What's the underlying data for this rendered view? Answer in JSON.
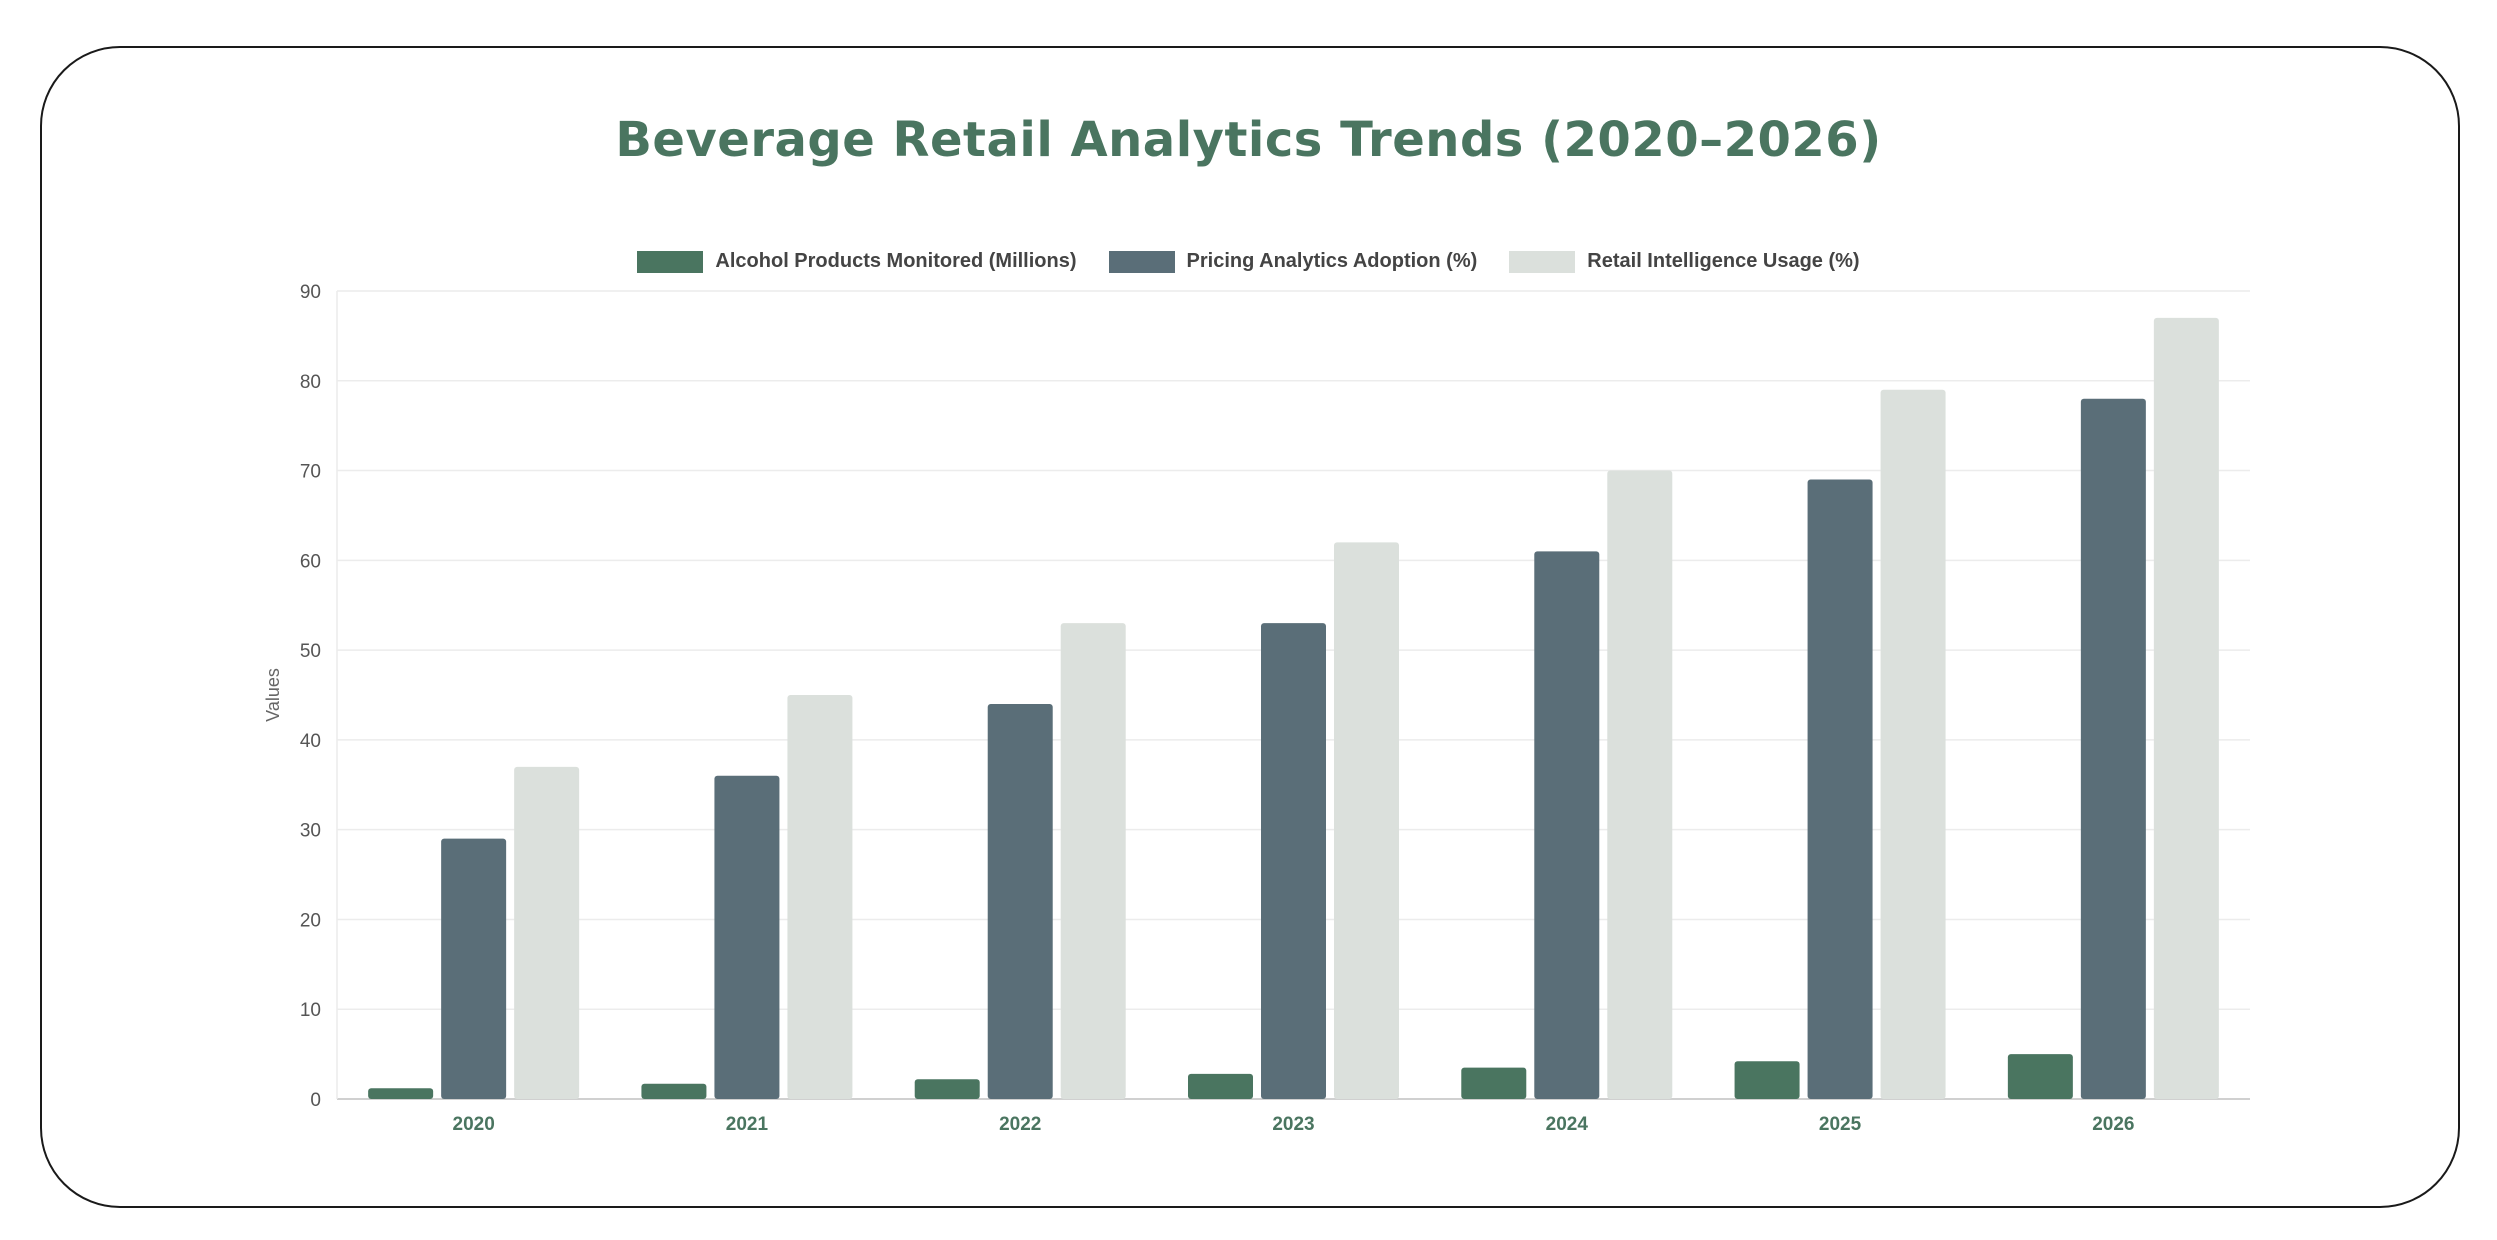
{
  "chart_data": {
    "type": "bar",
    "title": "Beverage Retail Analytics Trends (2020–2026)",
    "xlabel": "",
    "ylabel": "Values",
    "categories": [
      "2020",
      "2021",
      "2022",
      "2023",
      "2024",
      "2025",
      "2026"
    ],
    "series": [
      {
        "name": "Alcohol Products Monitored (Millions)",
        "color": "#4a7560",
        "values": [
          1.2,
          1.7,
          2.2,
          2.8,
          3.5,
          4.2,
          5.0
        ]
      },
      {
        "name": "Pricing Analytics Adoption (%)",
        "color": "#5a6e78",
        "values": [
          29,
          36,
          44,
          53,
          61,
          69,
          78
        ]
      },
      {
        "name": "Retail Intelligence Usage (%)",
        "color": "#dbe0dc",
        "values": [
          37,
          45,
          53,
          62,
          70,
          79,
          87
        ]
      }
    ],
    "ylim": [
      0,
      90
    ],
    "yticks": [
      0,
      10,
      20,
      30,
      40,
      50,
      60,
      70,
      80,
      90
    ],
    "grid": true,
    "legend_position": "top"
  }
}
